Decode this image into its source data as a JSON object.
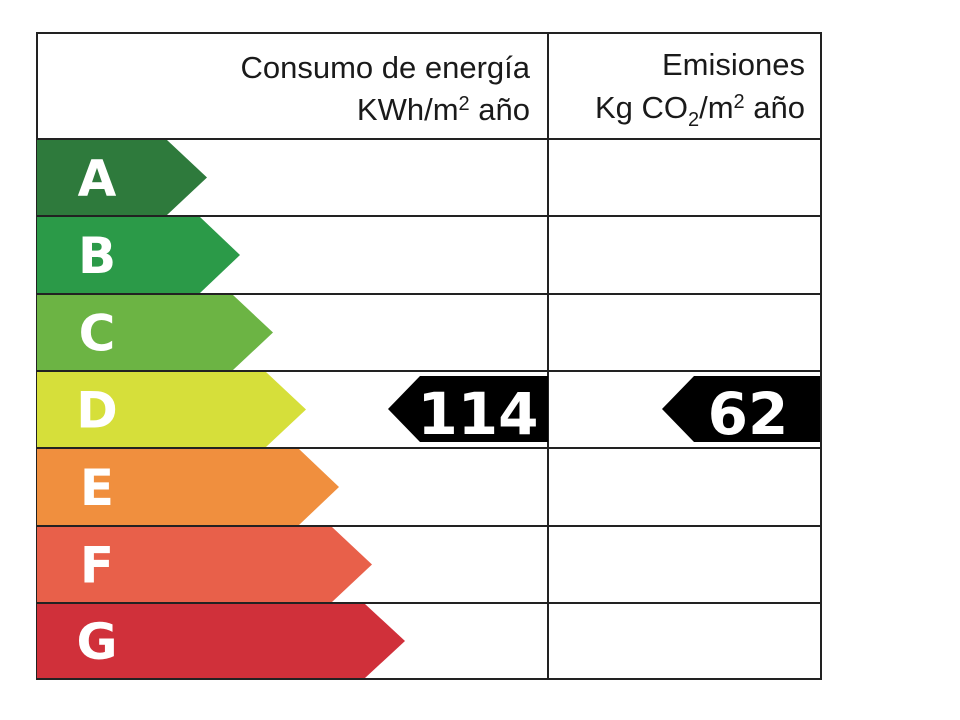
{
  "header": {
    "energy_title": "Consumo de energía",
    "energy_unit_pre": "KWh/m",
    "energy_unit_sup": "2",
    "energy_unit_post": " año",
    "emissions_title": "Emisiones",
    "emissions_unit_a": "Kg CO",
    "emissions_unit_sub": "2",
    "emissions_unit_b": "/m",
    "emissions_unit_sup": "2",
    "emissions_unit_c": " año"
  },
  "rating_scale": [
    {
      "letter": "A",
      "color": "#2e7a3c"
    },
    {
      "letter": "B",
      "color": "#2b9a48"
    },
    {
      "letter": "C",
      "color": "#6cb444"
    },
    {
      "letter": "D",
      "color": "#d6df3a"
    },
    {
      "letter": "E",
      "color": "#f08f3e"
    },
    {
      "letter": "F",
      "color": "#e8604a"
    },
    {
      "letter": "G",
      "color": "#d0303a"
    }
  ],
  "current_rating": "D",
  "energy_value": "114",
  "emissions_value": "62"
}
